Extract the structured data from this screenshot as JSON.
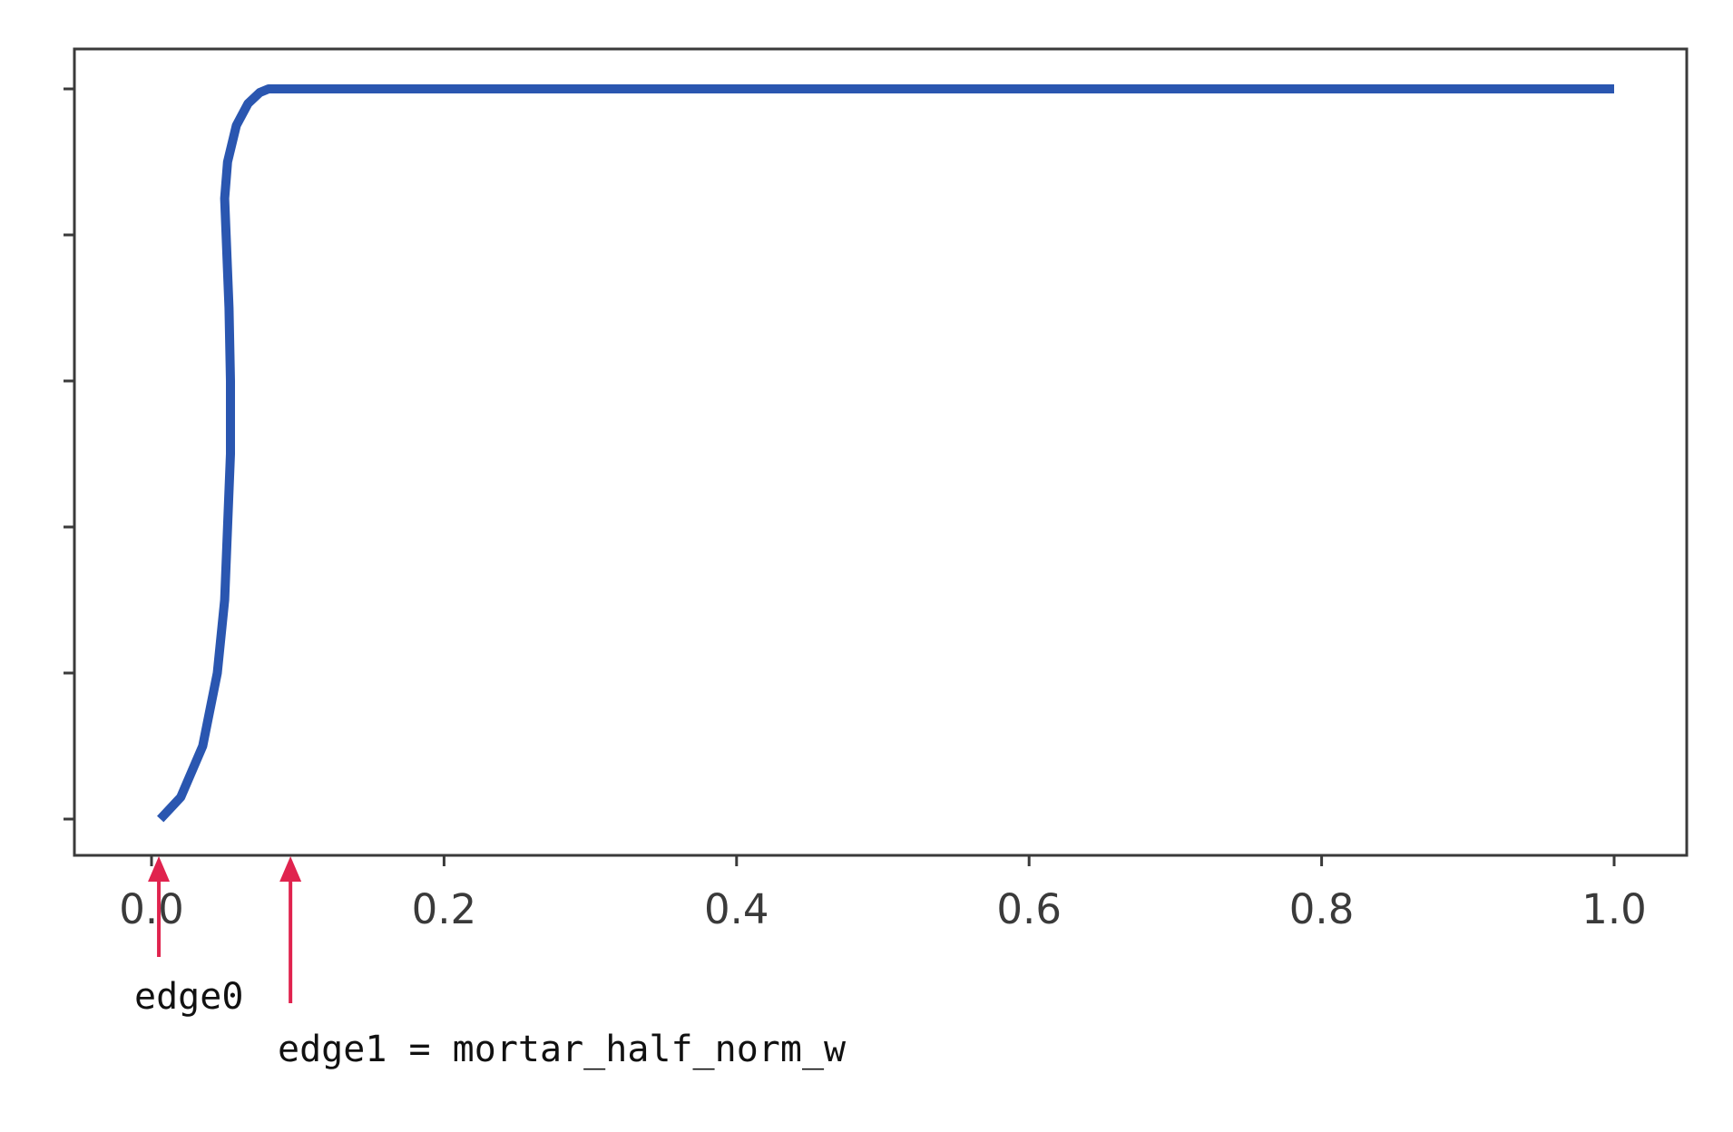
{
  "chart_data": {
    "type": "line",
    "title": "",
    "xlabel": "",
    "ylabel": "",
    "xlim": [
      -0.05,
      1.05
    ],
    "ylim": [
      -0.05,
      1.05
    ],
    "x_ticks": [
      0.0,
      0.2,
      0.4,
      0.6,
      0.8,
      1.0
    ],
    "x_tick_labels": [
      "0.0",
      "0.2",
      "0.4",
      "0.6",
      "0.8",
      "1.0"
    ],
    "y_ticks": [
      0.0,
      0.2,
      0.4,
      0.6,
      0.8,
      1.0
    ],
    "y_tick_labels": [
      "",
      "",
      "",
      "",
      "",
      ""
    ],
    "grid": false,
    "line_color": "#2a56b0",
    "series": [
      {
        "x": [
          0.006,
          0.02,
          0.035,
          0.045,
          0.05,
          0.052,
          0.054,
          0.054,
          0.053,
          0.051,
          0.05,
          0.052,
          0.058,
          0.066,
          0.074,
          0.08,
          0.1,
          0.4,
          0.7,
          1.0
        ],
        "y": [
          0.0,
          0.03,
          0.1,
          0.2,
          0.3,
          0.4,
          0.5,
          0.6,
          0.7,
          0.8,
          0.85,
          0.9,
          0.95,
          0.98,
          0.995,
          1.0,
          1.0,
          1.0,
          1.0,
          1.0
        ]
      }
    ],
    "annotations": [
      {
        "text": "edge0",
        "x": 0.005,
        "color": "#e0234e"
      },
      {
        "text": "edge1 = mortar_half_norm_w",
        "x": 0.095,
        "color": "#e0234e"
      }
    ]
  }
}
